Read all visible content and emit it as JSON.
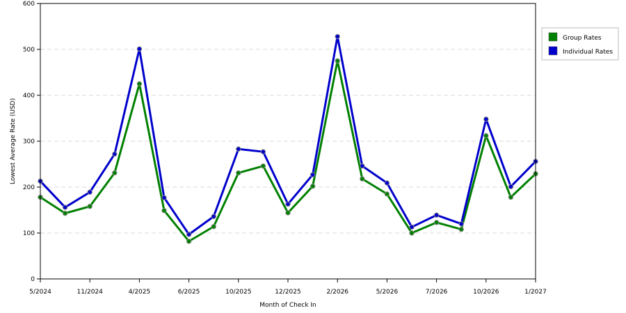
{
  "chart_data": {
    "type": "line",
    "xlabel": "Month of Check In",
    "ylabel": "Lowest Average Rate (USD)",
    "ylim": [
      0,
      600
    ],
    "yticks": [
      0,
      100,
      200,
      300,
      400,
      500,
      600
    ],
    "grid": "horizontal-dashed",
    "legend_position": "right",
    "x_tick_labels": [
      "5/2024",
      "11/2024",
      "4/2025",
      "6/2025",
      "10/2025",
      "12/2025",
      "2/2026",
      "5/2026",
      "7/2026",
      "10/2026",
      "1/2027"
    ],
    "x_tick_indices": [
      0,
      2,
      4,
      6,
      8,
      10,
      12,
      14,
      16,
      18,
      20
    ],
    "point_count": 21,
    "series": [
      {
        "name": "Group Rates",
        "color": "#008000",
        "values": [
          178,
          143,
          158,
          231,
          425,
          149,
          82,
          114,
          231,
          246,
          144,
          202,
          475,
          218,
          185,
          100,
          123,
          108,
          312,
          178,
          229
        ]
      },
      {
        "name": "Individual Rates",
        "color": "#0000cc",
        "values": [
          213,
          156,
          189,
          272,
          501,
          177,
          97,
          136,
          283,
          277,
          163,
          227,
          528,
          246,
          209,
          113,
          139,
          120,
          348,
          201,
          256
        ]
      }
    ]
  }
}
